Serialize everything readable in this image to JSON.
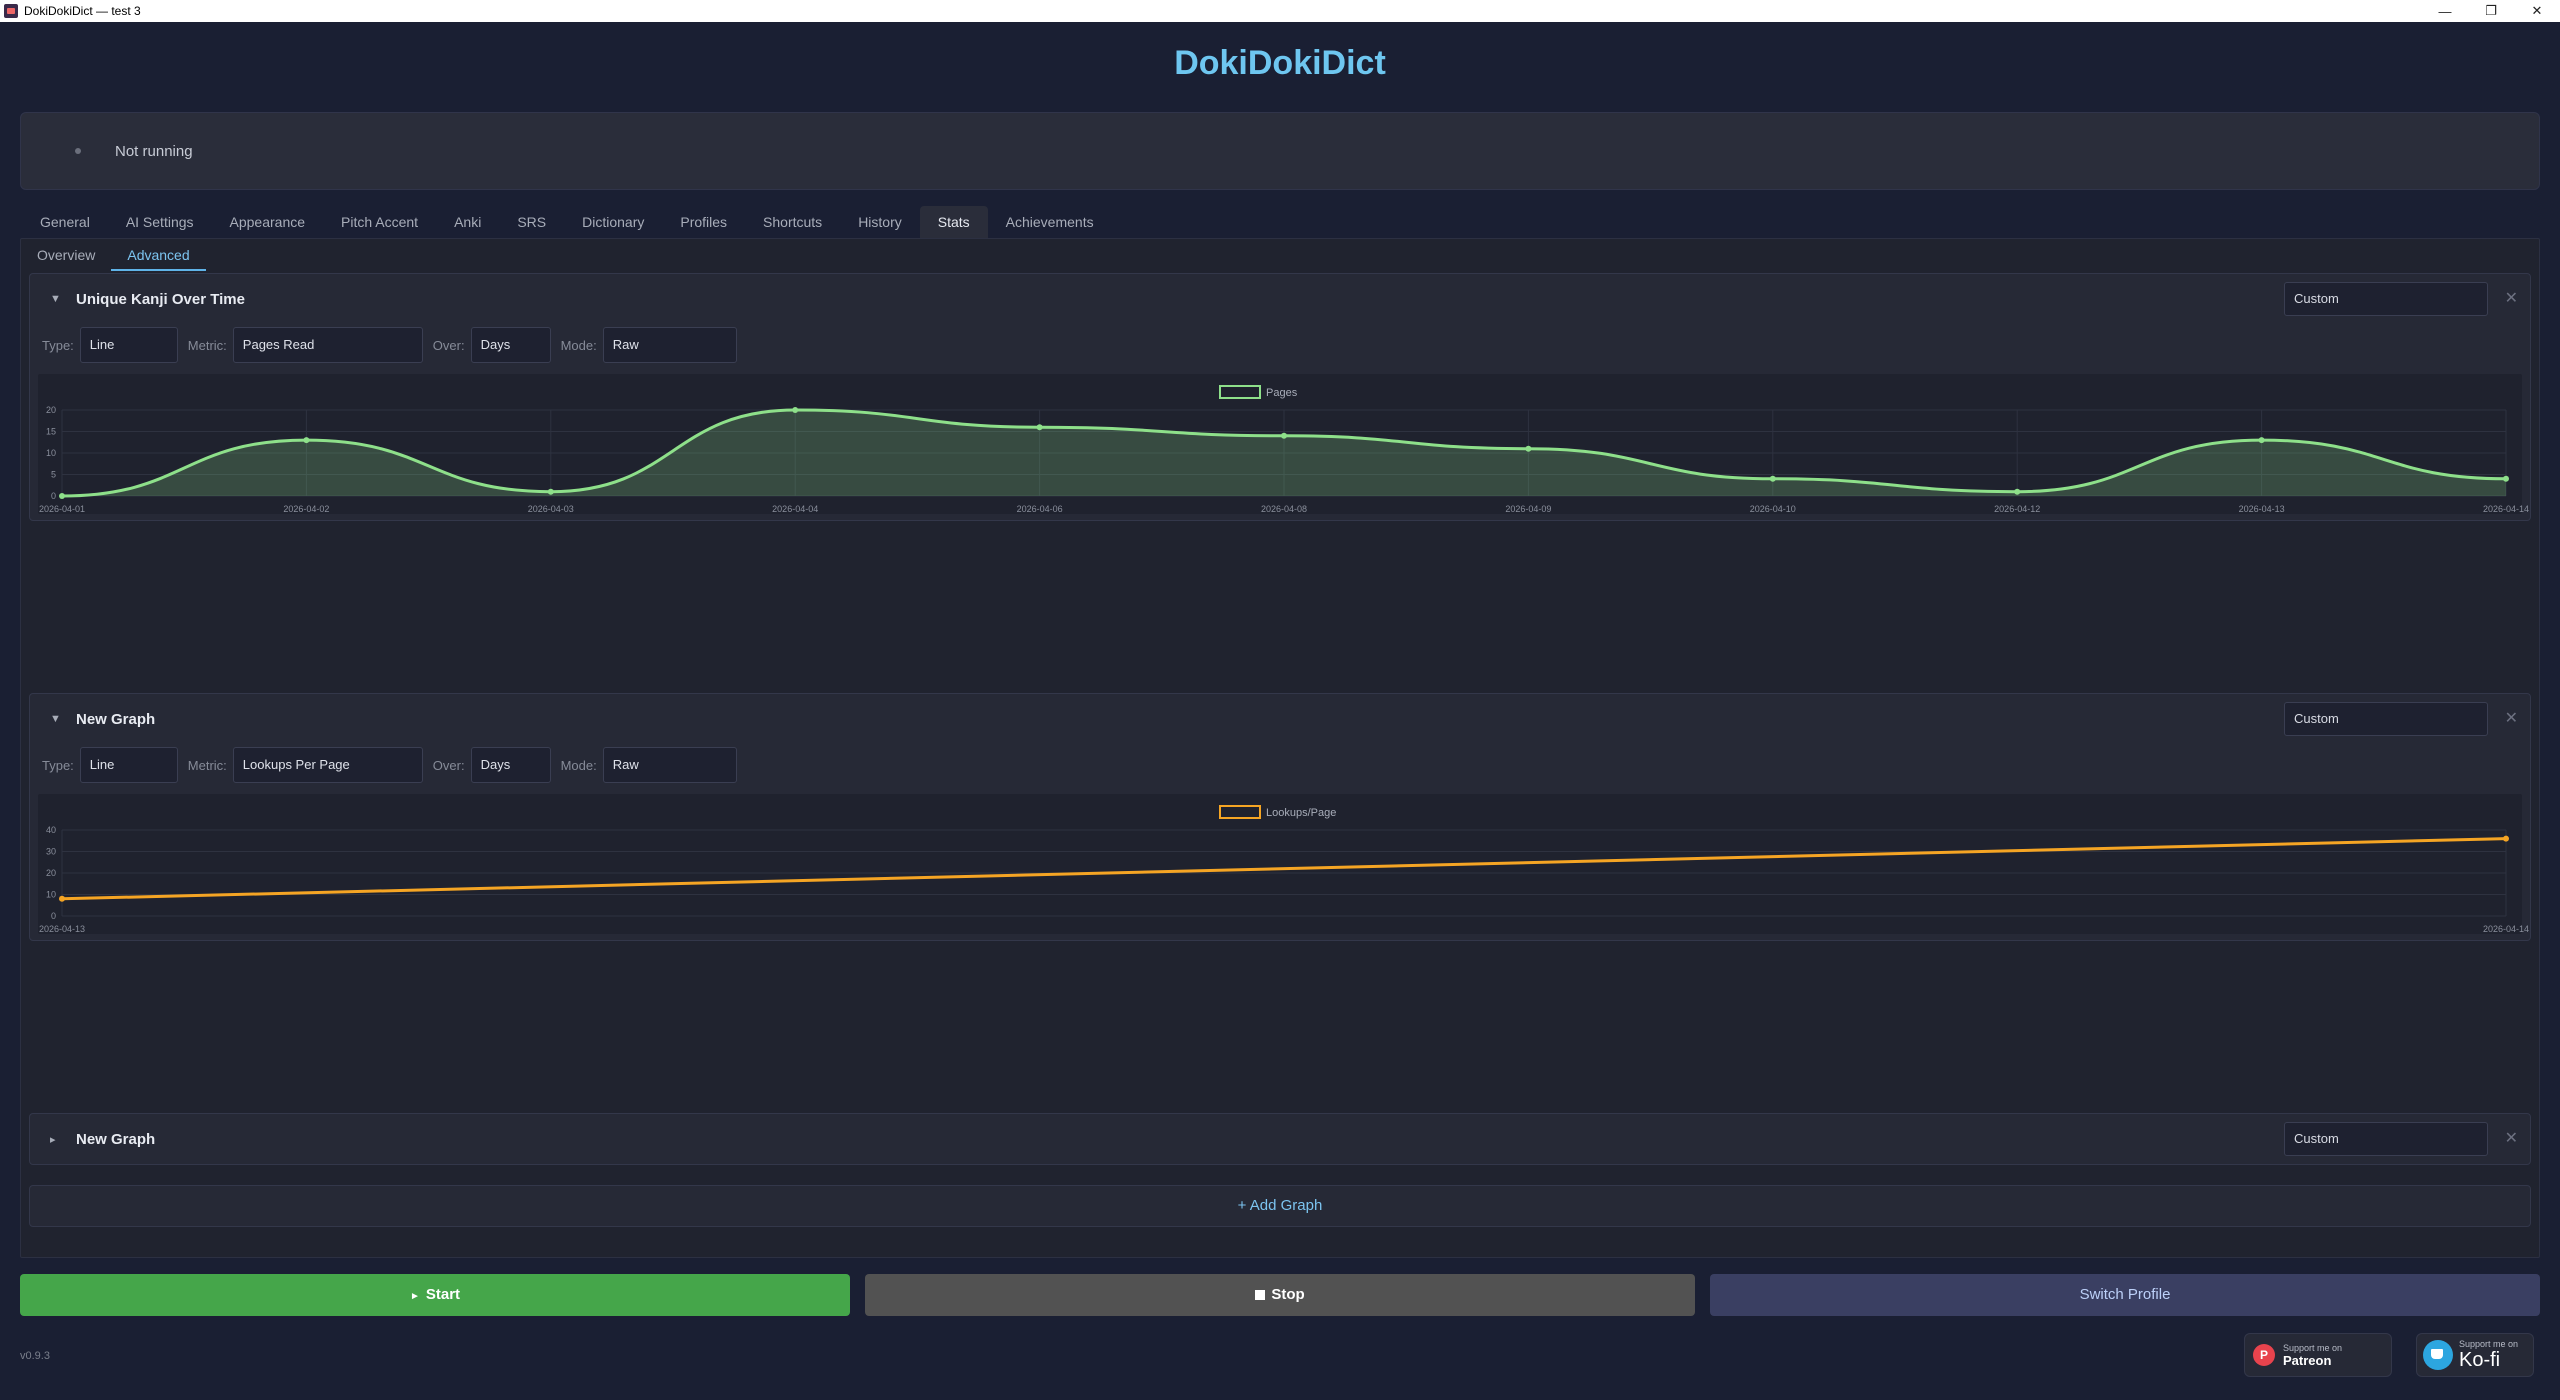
{
  "window": {
    "title": "DokiDokiDict — test 3"
  },
  "app": {
    "title": "DokiDokiDict"
  },
  "status": {
    "text": "Not running"
  },
  "tabs": [
    "General",
    "AI Settings",
    "Appearance",
    "Pitch Accent",
    "Anki",
    "SRS",
    "Dictionary",
    "Profiles",
    "Shortcuts",
    "History",
    "Stats",
    "Achievements"
  ],
  "active_tab": "Stats",
  "subtabs": [
    "Overview",
    "Advanced"
  ],
  "active_subtab": "Advanced",
  "graphs": [
    {
      "title": "Unique Kanji Over Time",
      "preset": "Custom",
      "collapsed": false,
      "controls": {
        "type_label": "Type:",
        "type": "Line",
        "metric_label": "Metric:",
        "metric": "Pages Read",
        "over_label": "Over:",
        "over": "Days",
        "mode_label": "Mode:",
        "mode": "Raw"
      }
    },
    {
      "title": "New Graph",
      "preset": "Custom",
      "collapsed": false,
      "controls": {
        "type_label": "Type:",
        "type": "Line",
        "metric_label": "Metric:",
        "metric": "Lookups Per Page",
        "over_label": "Over:",
        "over": "Days",
        "mode_label": "Mode:",
        "mode": "Raw"
      }
    },
    {
      "title": "New Graph",
      "preset": "Custom",
      "collapsed": true
    }
  ],
  "add_graph_label": "+ Add Graph",
  "buttons": {
    "start": "Start",
    "stop": "Stop",
    "switch_profile": "Switch Profile"
  },
  "version": "v0.9.3",
  "support": {
    "patreon_small": "Support me on",
    "patreon_big": "Patreon",
    "kofi_small": "Support me on",
    "kofi_big": "Ko-fi"
  },
  "colors": {
    "accent": "#6ec6f0",
    "start": "#45a64a",
    "series1": "#8ee08a",
    "series2": "#f5a524"
  },
  "chart_data": [
    {
      "type": "area",
      "legend": "top-center",
      "grid": true,
      "categories": [
        "2026-04-01",
        "2026-04-02",
        "2026-04-03",
        "2026-04-04",
        "2026-04-06",
        "2026-04-08",
        "2026-04-09",
        "2026-04-10",
        "2026-04-12",
        "2026-04-13",
        "2026-04-14"
      ],
      "series": [
        {
          "name": "Pages",
          "color": "#8ee08a",
          "values": [
            0,
            13,
            1,
            20,
            16,
            14,
            11,
            4,
            1,
            13,
            4
          ]
        }
      ],
      "y_ticks": [
        0,
        5,
        10,
        15,
        20
      ],
      "ylim": [
        0,
        20
      ]
    },
    {
      "type": "line",
      "legend": "top-center",
      "grid": true,
      "categories": [
        "2026-04-13",
        "2026-04-14"
      ],
      "series": [
        {
          "name": "Lookups/Page",
          "color": "#f5a524",
          "values": [
            8,
            36
          ]
        }
      ],
      "y_ticks": [
        0,
        10,
        20,
        30,
        40
      ],
      "ylim": [
        0,
        40
      ]
    }
  ]
}
